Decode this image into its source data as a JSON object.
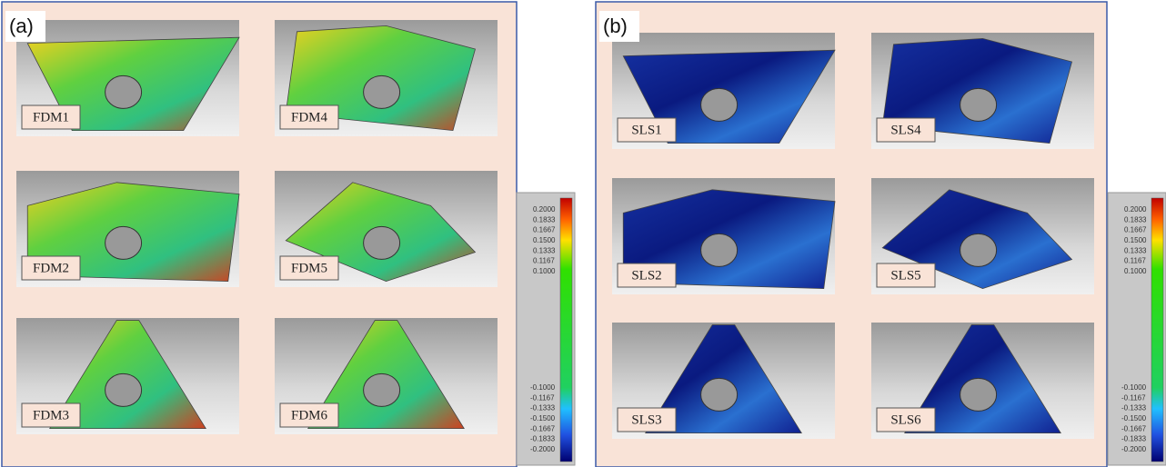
{
  "panels": [
    {
      "label": "(a)",
      "tiles": [
        "FDM1",
        "FDM4",
        "FDM2",
        "FDM5",
        "FDM3",
        "FDM6"
      ],
      "colorbar": {
        "upper": [
          "0.2000",
          "0.1833",
          "0.1667",
          "0.1500",
          "0.1333",
          "0.1167",
          "0.1000"
        ],
        "lower": [
          "-0.1000",
          "-0.1167",
          "-0.1333",
          "-0.1500",
          "-0.1667",
          "-0.1833",
          "-0.2000"
        ]
      }
    },
    {
      "label": "(b)",
      "tiles": [
        "SLS1",
        "SLS4",
        "SLS2",
        "SLS5",
        "SLS3",
        "SLS6"
      ],
      "colorbar": {
        "upper": [
          "0.2000",
          "0.1833",
          "0.1667",
          "0.1500",
          "0.1333",
          "0.1167",
          "0.1000"
        ],
        "lower": [
          "-0.1000",
          "-0.1167",
          "-0.1333",
          "-0.1500",
          "-0.1667",
          "-0.1833",
          "-0.2000"
        ]
      }
    }
  ]
}
